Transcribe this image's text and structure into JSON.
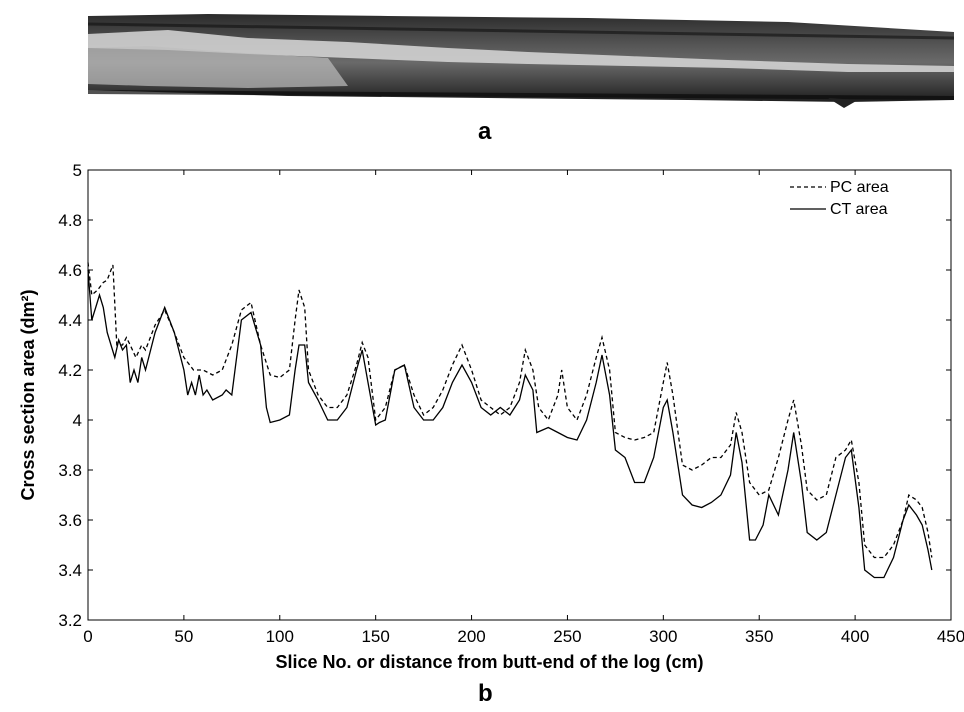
{
  "panels": {
    "a_label": "a",
    "b_label": "b"
  },
  "chart_data": {
    "type": "line",
    "xlabel": "Slice No. or distance from butt-end of the log (cm)",
    "ylabel": "Cross section area (dm²)",
    "xlim": [
      0,
      450
    ],
    "ylim": [
      3.2,
      5
    ],
    "xticks": [
      0,
      50,
      100,
      150,
      200,
      250,
      300,
      350,
      400,
      450
    ],
    "yticks": [
      3.2,
      3.4,
      3.6,
      3.8,
      4,
      4.2,
      4.4,
      4.6,
      4.8,
      5
    ],
    "grid": false,
    "legend_position": "top-right",
    "series": [
      {
        "name": "PC area",
        "style": "dashed",
        "color": "#000000",
        "x": [
          0,
          2,
          5,
          8,
          10,
          13,
          15,
          18,
          20,
          22,
          25,
          28,
          30,
          35,
          40,
          45,
          50,
          55,
          60,
          65,
          70,
          75,
          80,
          85,
          90,
          95,
          100,
          105,
          108,
          110,
          113,
          115,
          120,
          125,
          130,
          135,
          140,
          143,
          146,
          150,
          155,
          160,
          165,
          170,
          175,
          180,
          185,
          190,
          195,
          200,
          205,
          210,
          215,
          220,
          225,
          228,
          232,
          235,
          240,
          245,
          247,
          250,
          255,
          260,
          265,
          268,
          272,
          275,
          280,
          285,
          290,
          295,
          300,
          302,
          305,
          310,
          315,
          320,
          325,
          330,
          335,
          338,
          341,
          345,
          350,
          355,
          360,
          365,
          368,
          372,
          375,
          380,
          385,
          390,
          395,
          398,
          402,
          405,
          410,
          415,
          420,
          425,
          428,
          432,
          435,
          438,
          440
        ],
        "y": [
          4.63,
          4.5,
          4.52,
          4.55,
          4.56,
          4.62,
          4.3,
          4.3,
          4.33,
          4.3,
          4.25,
          4.3,
          4.28,
          4.38,
          4.44,
          4.35,
          4.25,
          4.2,
          4.2,
          4.18,
          4.2,
          4.3,
          4.44,
          4.47,
          4.3,
          4.18,
          4.17,
          4.2,
          4.4,
          4.52,
          4.45,
          4.2,
          4.1,
          4.05,
          4.05,
          4.1,
          4.22,
          4.31,
          4.25,
          4.0,
          4.05,
          4.2,
          4.22,
          4.1,
          4.02,
          4.05,
          4.12,
          4.22,
          4.3,
          4.2,
          4.08,
          4.05,
          4.02,
          4.05,
          4.15,
          4.28,
          4.2,
          4.05,
          4.0,
          4.1,
          4.2,
          4.05,
          4.0,
          4.1,
          4.25,
          4.33,
          4.2,
          3.95,
          3.93,
          3.92,
          3.93,
          3.95,
          4.15,
          4.23,
          4.1,
          3.82,
          3.8,
          3.82,
          3.85,
          3.85,
          3.9,
          4.03,
          3.95,
          3.75,
          3.7,
          3.72,
          3.85,
          4.0,
          4.08,
          3.9,
          3.72,
          3.68,
          3.7,
          3.85,
          3.88,
          3.92,
          3.75,
          3.5,
          3.45,
          3.45,
          3.5,
          3.6,
          3.7,
          3.68,
          3.65,
          3.55,
          3.45
        ]
      },
      {
        "name": "CT area",
        "style": "solid",
        "color": "#000000",
        "x": [
          0,
          2,
          4,
          6,
          8,
          10,
          12,
          14,
          16,
          18,
          20,
          22,
          24,
          26,
          28,
          30,
          35,
          40,
          45,
          50,
          52,
          54,
          56,
          58,
          60,
          62,
          65,
          70,
          72,
          75,
          80,
          85,
          90,
          93,
          95,
          100,
          105,
          108,
          110,
          113,
          115,
          120,
          125,
          130,
          135,
          140,
          143,
          146,
          150,
          152,
          155,
          160,
          165,
          170,
          175,
          180,
          185,
          190,
          195,
          200,
          205,
          210,
          215,
          220,
          225,
          228,
          232,
          234,
          240,
          245,
          250,
          255,
          260,
          265,
          268,
          272,
          275,
          280,
          285,
          290,
          295,
          300,
          302,
          305,
          310,
          315,
          320,
          325,
          330,
          335,
          338,
          341,
          345,
          348,
          352,
          355,
          360,
          365,
          368,
          372,
          375,
          380,
          385,
          390,
          395,
          398,
          402,
          405,
          410,
          415,
          420,
          425,
          428,
          432,
          435,
          438,
          440
        ],
        "y": [
          4.6,
          4.4,
          4.45,
          4.5,
          4.45,
          4.35,
          4.3,
          4.25,
          4.32,
          4.28,
          4.3,
          4.15,
          4.2,
          4.15,
          4.25,
          4.2,
          4.35,
          4.45,
          4.35,
          4.2,
          4.1,
          4.15,
          4.1,
          4.18,
          4.1,
          4.12,
          4.08,
          4.1,
          4.12,
          4.1,
          4.4,
          4.43,
          4.3,
          4.05,
          3.99,
          4.0,
          4.02,
          4.2,
          4.3,
          4.3,
          4.15,
          4.08,
          4.0,
          4.0,
          4.05,
          4.2,
          4.28,
          4.15,
          3.98,
          3.99,
          4.0,
          4.2,
          4.22,
          4.05,
          4.0,
          4.0,
          4.05,
          4.15,
          4.22,
          4.15,
          4.05,
          4.02,
          4.05,
          4.02,
          4.08,
          4.18,
          4.12,
          3.95,
          3.97,
          3.95,
          3.93,
          3.92,
          4.0,
          4.15,
          4.26,
          4.1,
          3.88,
          3.85,
          3.75,
          3.75,
          3.85,
          4.05,
          4.08,
          3.95,
          3.7,
          3.66,
          3.65,
          3.67,
          3.7,
          3.78,
          3.95,
          3.83,
          3.52,
          3.52,
          3.58,
          3.7,
          3.62,
          3.8,
          3.95,
          3.75,
          3.55,
          3.52,
          3.55,
          3.7,
          3.85,
          3.88,
          3.65,
          3.4,
          3.37,
          3.37,
          3.45,
          3.6,
          3.66,
          3.62,
          3.58,
          3.48,
          3.4
        ]
      }
    ]
  }
}
